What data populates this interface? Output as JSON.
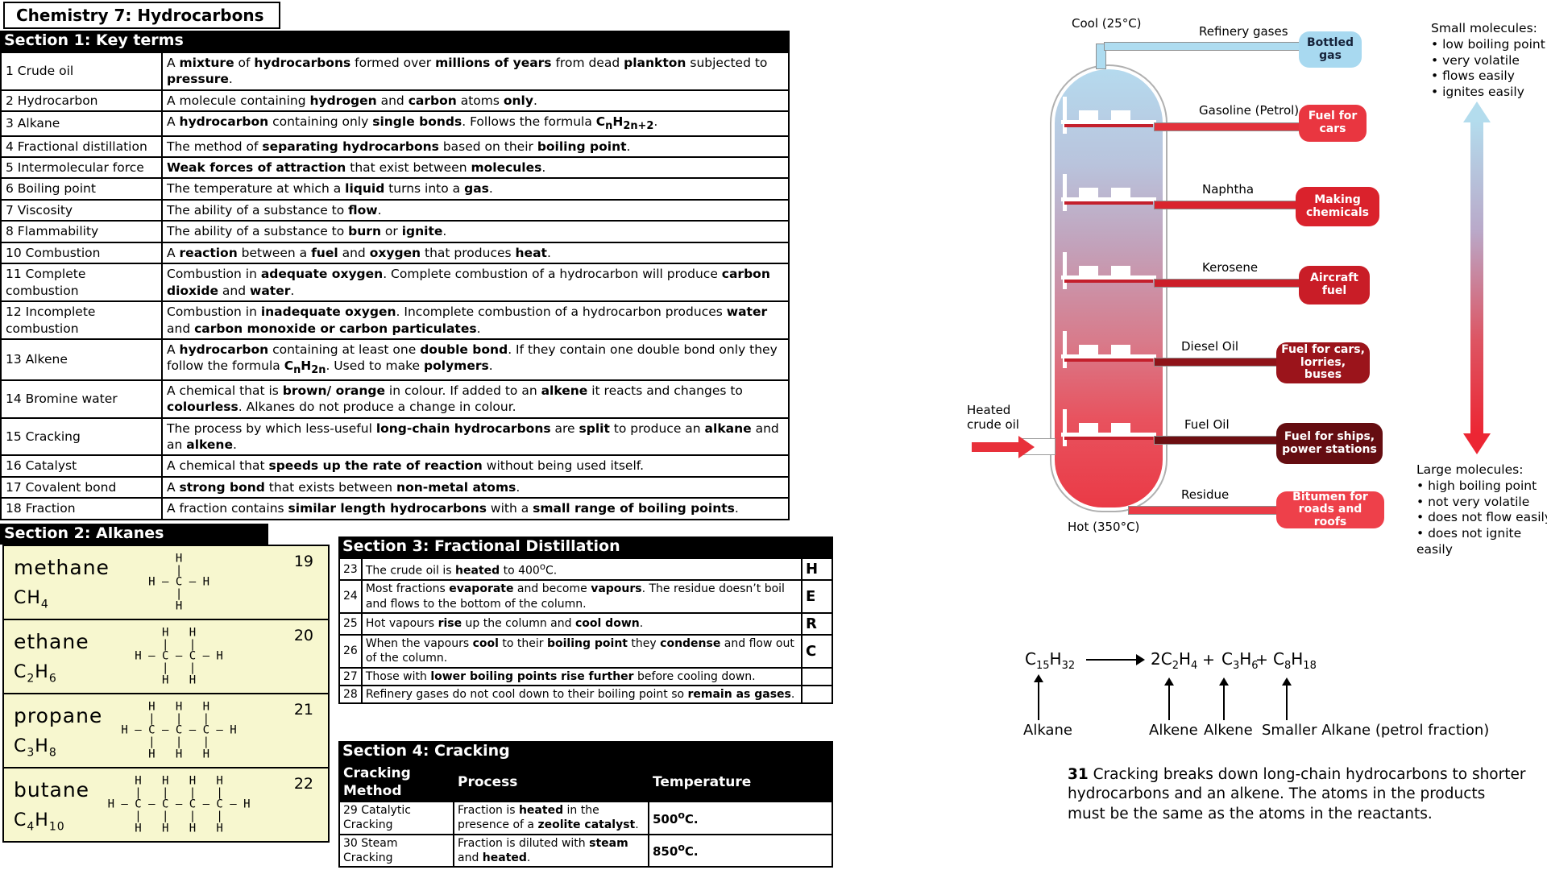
{
  "title": "Chemistry 7: Hydrocarbons",
  "section1": {
    "header": "Section 1: Key terms",
    "rows": [
      {
        "label": "1 Crude oil",
        "definition": "A **mixture** of **hydrocarbons** formed over **millions of years** from dead **plankton** subjected to **pressure**."
      },
      {
        "label": "2 Hydrocarbon",
        "definition": "A molecule containing **hydrogen** and **carbon** atoms **only**."
      },
      {
        "label": "3 Alkane",
        "definition": "A **hydrocarbon** containing only **single bonds**.  Follows the formula **C~n~H~2n+2~**."
      },
      {
        "label": "4 Fractional distillation",
        "definition": "The method of **separating hydrocarbons** based on their **boiling point**."
      },
      {
        "label": "5 Intermolecular force",
        "definition": "**Weak forces of attraction** that exist between **molecules**."
      },
      {
        "label": "6 Boiling point",
        "definition": "The temperature at which a **liquid** turns into a **gas**."
      },
      {
        "label": "7 Viscosity",
        "definition": "The ability of a substance to **flow**."
      },
      {
        "label": "8 Flammability",
        "definition": "The ability of a substance to **burn** or **ignite**."
      },
      {
        "label": "10 Combustion",
        "definition": "A **reaction** between a **fuel** and **oxygen** that produces **heat**."
      },
      {
        "label": "11 Complete combustion",
        "definition": "Combustion in **adequate oxygen**.  Complete combustion of a hydrocarbon will produce **carbon dioxide** and **water**."
      },
      {
        "label": "12 Incomplete combustion",
        "definition": "Combustion in **inadequate oxygen**.  Incomplete combustion of a hydrocarbon produces **water** and **carbon monoxide or carbon particulates**."
      },
      {
        "label": "13 Alkene",
        "definition": "A **hydrocarbon** containing at least one **double bond**.  If they contain one double bond only they follow the formula **C~n~H~2n~**.  Used to make **polymers**."
      },
      {
        "label": "14 Bromine water",
        "definition": "A chemical that is **brown/ orange** in colour.  If added to an **alkene** it reacts and changes to **colourless**. Alkanes do not produce a change in colour."
      },
      {
        "label": "15 Cracking",
        "definition": "The process by which less-useful **long-chain hydrocarbons** are **split** to produce an **alkane** and an **alkene**."
      },
      {
        "label": "16 Catalyst",
        "definition": "A chemical that **speeds up the rate of reaction** without being used itself."
      },
      {
        "label": "17 Covalent bond",
        "definition": "A **strong bond** that exists between **non-metal atoms**."
      },
      {
        "label": "18 Fraction",
        "definition": "A fraction contains **similar length hydrocarbons** with a **small range of boiling points**."
      }
    ]
  },
  "section2": {
    "header": "Section 2: Alkanes",
    "alkanes": [
      {
        "name": "methane",
        "formula": "CH~4~",
        "number": "19",
        "structure": [
          "    H",
          "    |",
          "H — C — H",
          "    |",
          "    H"
        ]
      },
      {
        "name": "ethane",
        "formula": "C~2~H~6~",
        "number": "20",
        "structure": [
          "    H   H",
          "    |   |",
          "H — C — C — H",
          "    |   |",
          "    H   H"
        ]
      },
      {
        "name": "propane",
        "formula": "C~3~H~8~",
        "number": "21",
        "structure": [
          "    H   H   H",
          "    |   |   |",
          "H — C — C — C — H",
          "    |   |   |",
          "    H   H   H"
        ]
      },
      {
        "name": "butane",
        "formula": "C~4~H~10~",
        "number": "22",
        "structure": [
          "    H   H   H   H",
          "    |   |   |   |",
          "H — C — C — C — C — H",
          "    |   |   |   |",
          "    H   H   H   H"
        ]
      }
    ]
  },
  "section3": {
    "header": "Section 3: Fractional Distillation",
    "rows": [
      {
        "num": "23",
        "text": "The crude oil is **heated** to 400^o^C.",
        "letter": "H"
      },
      {
        "num": "24",
        "text": "Most fractions **evaporate** and become **vapours**.  The residue doesn’t boil and flows to the bottom of the column.",
        "letter": "E"
      },
      {
        "num": "25",
        "text": "Hot vapours **rise** up the column and **cool down**.",
        "letter": "R"
      },
      {
        "num": "26",
        "text": "When the vapours **cool** to their **boiling point** they **condense** and flow out of the column.",
        "letter": "C"
      },
      {
        "num": "27",
        "text": "Those with **lower boiling points rise further** before cooling down.",
        "letter": ""
      },
      {
        "num": "28",
        "text": "Refinery gases do not cool down to their boiling point so **remain as gases**.",
        "letter": ""
      }
    ]
  },
  "section4": {
    "header": "Section 4: Cracking",
    "columns": [
      "Cracking Method",
      "Process",
      "Temperature"
    ],
    "rows": [
      {
        "method": "29 Catalytic Cracking",
        "process": "Fraction is **heated** in the presence of a **zeolite catalyst**.",
        "temp": "**500^o^C.**"
      },
      {
        "method": "30 Steam Cracking",
        "process": "Fraction is diluted with **steam** and **heated**.",
        "temp": "**850^o^C.**"
      }
    ]
  },
  "distillation": {
    "cool_label": "Cool (25°C)",
    "hot_label": "Hot (350°C)",
    "feed_label": "Heated\ncrude oil",
    "fractions": [
      {
        "name": "Refinery gases",
        "use": "Bottled gas",
        "box_color": "#a8d9f0",
        "pipe_color": "#aedcf0",
        "text_color": "#16233a"
      },
      {
        "name": "Gasoline (Petrol)",
        "use": "Fuel for cars",
        "box_color": "#e93640",
        "pipe_color": "#e3323c",
        "text_color": "#ffffff"
      },
      {
        "name": "Naphtha",
        "use": "Making chemicals",
        "box_color": "#da222c",
        "pipe_color": "#d9242e",
        "text_color": "#ffffff"
      },
      {
        "name": "Kerosene",
        "use": "Aircraft fuel",
        "box_color": "#c91d27",
        "pipe_color": "#cc1f29",
        "text_color": "#ffffff"
      },
      {
        "name": "Diesel Oil",
        "use": "Fuel for cars, lorries, buses",
        "box_color": "#9b141b",
        "pipe_color": "#8f1319",
        "text_color": "#ffffff"
      },
      {
        "name": "Fuel Oil",
        "use": "Fuel for ships, power stations",
        "box_color": "#650d11",
        "pipe_color": "#6d0e12",
        "text_color": "#ffffff"
      },
      {
        "name": "Residue",
        "use": "Bitumen for roads and roofs",
        "box_color": "#ee404a",
        "pipe_color": "#e93b46",
        "text_color": "#ffffff"
      }
    ],
    "small_molecules": {
      "title": "Small molecules:",
      "items": [
        "low boiling point",
        "very volatile",
        "flows easily",
        "ignites easily"
      ]
    },
    "large_molecules": {
      "title": "Large molecules:",
      "items": [
        "high boiling point",
        "not very volatile",
        "does not flow easily",
        "does not ignite easily"
      ]
    }
  },
  "cracking_equation": {
    "reactant": "C~15~H~32~",
    "products": [
      "2C~2~H~4~",
      "C~3~H~6~",
      "C~8~H~18~"
    ],
    "plus": "+",
    "labels": [
      "Alkane",
      "Alkene",
      "Alkene",
      "Smaller Alkane (petrol fraction)"
    ]
  },
  "note31": "**31** Cracking breaks down long-chain hydrocarbons to shorter hydrocarbons and an alkene.  The atoms in the products must be the same as the atoms in the reactants."
}
